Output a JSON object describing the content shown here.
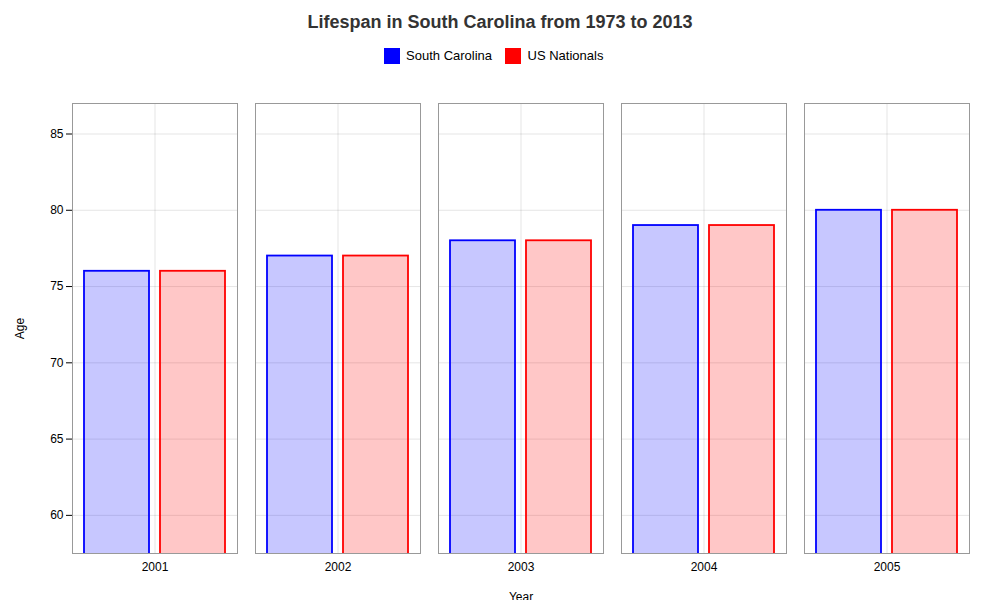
{
  "chart_data": {
    "type": "bar",
    "title": "Lifespan in South Carolina from 1973 to 2013",
    "xlabel": "Year",
    "ylabel": "Age",
    "categories": [
      "2001",
      "2002",
      "2003",
      "2004",
      "2005"
    ],
    "series": [
      {
        "name": "South Carolina",
        "color": "#0000ff",
        "values": [
          76.0,
          77.0,
          78.0,
          79.0,
          80.0
        ]
      },
      {
        "name": "US Nationals",
        "color": "#ff0000",
        "values": [
          76.0,
          77.0,
          78.0,
          79.0,
          80.0
        ]
      }
    ],
    "ylim": [
      57.5,
      87
    ],
    "yticks": [
      60,
      65,
      70,
      75,
      80,
      85
    ],
    "grid": true,
    "legend": "top"
  }
}
